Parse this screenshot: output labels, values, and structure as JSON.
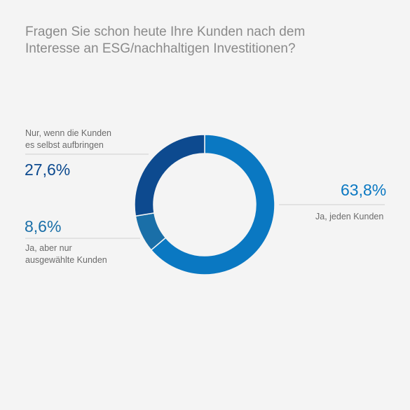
{
  "title_lines": [
    "Fragen Sie schon heute Ihre Kunden nach dem",
    "Interesse an ESG/nachhaltigen Investitionen?"
  ],
  "colors": {
    "background": "#f4f4f4",
    "ja_jeden": "#0a78c2",
    "ja_ausgewaehlte": "#1a6fa8",
    "nur_wenn": "#0d4a8f",
    "leader_line": "#cfcfcf"
  },
  "chart_data": {
    "type": "pie",
    "donut": true,
    "title": "Fragen Sie schon heute Ihre Kunden nach dem Interesse an ESG/nachhaltigen Investitionen?",
    "slices": [
      {
        "label_lines": [
          "Ja, jeden Kunden"
        ],
        "value": 63.8,
        "display": "63,8%",
        "color": "#0a78c2"
      },
      {
        "label_lines": [
          "Ja, aber nur",
          "ausgewählte Kunden"
        ],
        "value": 8.6,
        "display": "8,6%",
        "color": "#1a6fa8"
      },
      {
        "label_lines": [
          "Nur, wenn die Kunden",
          "es selbst aufbringen"
        ],
        "value": 27.6,
        "display": "27,6%",
        "color": "#0d4a8f"
      }
    ]
  }
}
